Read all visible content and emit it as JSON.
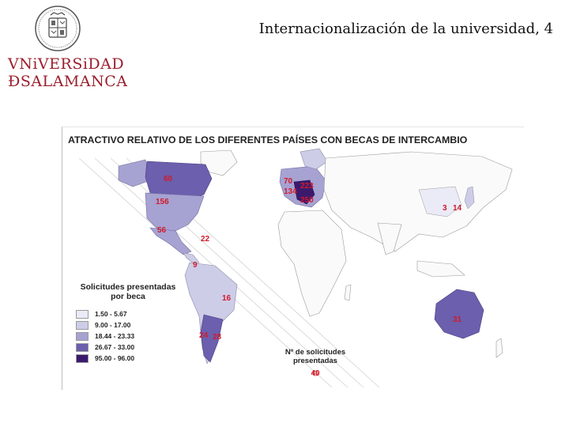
{
  "slide": {
    "title": "Internacionalización de la universidad, 4",
    "logo": {
      "line1": "VNiVERSiDAD",
      "line2": "ÐSALAMANCA",
      "crest": "university-seal"
    }
  },
  "map": {
    "title": "ATRACTIVO RELATIVO DE LOS DIFERENTES PAÍSES CON BECAS DE INTERCAMBIO",
    "legend": {
      "title_line1": "Solicitudes presentadas",
      "title_line2": "por beca",
      "classes": [
        {
          "range": "1.50 - 5.67",
          "color": "#ebebf7"
        },
        {
          "range": "9.00 - 17.00",
          "color": "#cdcde8"
        },
        {
          "range": "18.44 - 23.33",
          "color": "#a6a2d2"
        },
        {
          "range": "26.67 - 33.00",
          "color": "#6b5fae"
        },
        {
          "range": "95.00 - 96.00",
          "color": "#3b1a6e"
        }
      ]
    },
    "size_legend": {
      "title_line1": "Nº de solicitudes",
      "title_line2": "presentadas",
      "value": "40"
    },
    "country_labels": [
      {
        "text": "60",
        "region": "canada"
      },
      {
        "text": "156",
        "region": "usa"
      },
      {
        "text": "56",
        "region": "mexico"
      },
      {
        "text": "22",
        "region": "central-america"
      },
      {
        "text": "9",
        "region": "colombia"
      },
      {
        "text": "16",
        "region": "brazil"
      },
      {
        "text": "24",
        "region": "chile"
      },
      {
        "text": "28",
        "region": "argentina"
      },
      {
        "text": "70",
        "region": "uk"
      },
      {
        "text": "134",
        "region": "france"
      },
      {
        "text": "223",
        "region": "germany"
      },
      {
        "text": "250",
        "region": "italy"
      },
      {
        "text": "3",
        "region": "china"
      },
      {
        "text": "14",
        "region": "japan"
      },
      {
        "text": "31",
        "region": "australia"
      }
    ]
  }
}
